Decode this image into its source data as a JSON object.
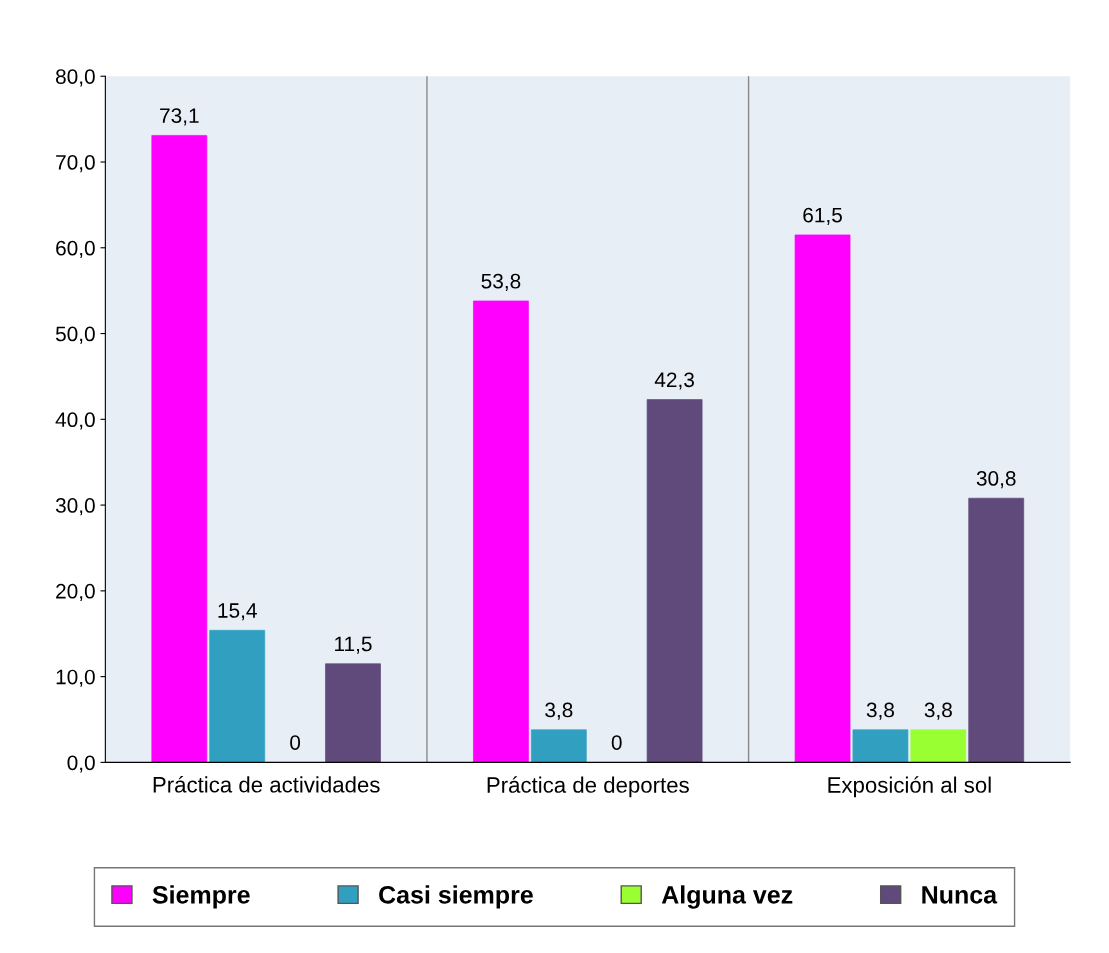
{
  "chart_data": {
    "type": "bar",
    "categories": [
      "Práctica de actividades",
      "Práctica de deportes",
      "Exposición al sol"
    ],
    "series": [
      {
        "name": "Siempre",
        "color": "#ff00ff",
        "values": [
          73.1,
          53.8,
          61.5
        ],
        "value_labels": [
          "73,1",
          "53,8",
          "61,5"
        ]
      },
      {
        "name": "Casi siempre",
        "color": "#31a0c0",
        "values": [
          15.4,
          3.8,
          3.8
        ],
        "value_labels": [
          "15,4",
          "3,8",
          "3,8"
        ]
      },
      {
        "name": "Alguna vez",
        "color": "#99ff33",
        "values": [
          0,
          0,
          3.8
        ],
        "value_labels": [
          "0",
          "0",
          "3,8"
        ]
      },
      {
        "name": "Nunca",
        "color": "#604a7b",
        "values": [
          11.5,
          42.3,
          30.8
        ],
        "value_labels": [
          "11,5",
          "42,3",
          "30,8"
        ]
      }
    ],
    "ylim": [
      0,
      80
    ],
    "yticks": [
      {
        "value": 0,
        "label": "0,0"
      },
      {
        "value": 10,
        "label": "10,0"
      },
      {
        "value": 20,
        "label": "20,0"
      },
      {
        "value": 30,
        "label": "30,0"
      },
      {
        "value": 40,
        "label": "40,0"
      },
      {
        "value": 50,
        "label": "50,0"
      },
      {
        "value": 60,
        "label": "60,0"
      },
      {
        "value": 70,
        "label": "70,0"
      },
      {
        "value": 80,
        "label": "80,0"
      }
    ],
    "legend": "bottom"
  }
}
